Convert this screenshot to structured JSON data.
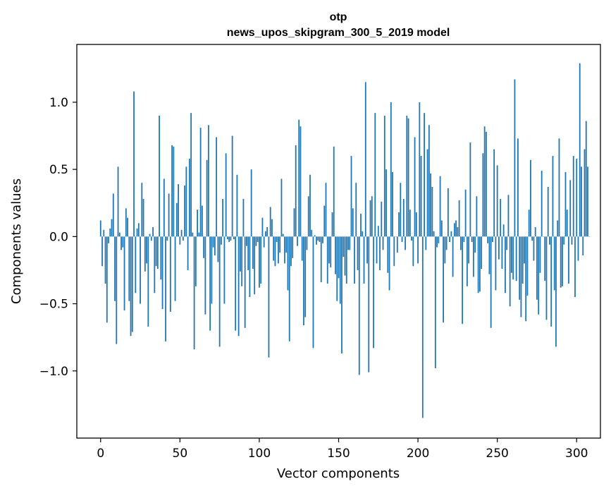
{
  "chart_data": {
    "type": "bar",
    "title_lines": [
      "otp",
      "news_upos_skipgram_300_5_2019 model"
    ],
    "xlabel": "Vector components",
    "ylabel": "Components values",
    "x_range": [
      -15,
      315
    ],
    "ylim": [
      -1.5,
      1.43
    ],
    "x_ticks": [
      0,
      50,
      100,
      150,
      200,
      250,
      300
    ],
    "x_tick_labels": [
      "0",
      "50",
      "100",
      "150",
      "200",
      "250",
      "300"
    ],
    "y_ticks": [
      -1.0,
      -0.5,
      0.0,
      0.5,
      1.0
    ],
    "y_tick_labels": [
      "−1.0",
      "−0.5",
      "0.0",
      "0.5",
      "1.0"
    ],
    "grid": false,
    "bar_color": "#1f77b4",
    "values": [
      0.12,
      -0.22,
      0.05,
      -0.35,
      -0.64,
      -0.05,
      0.06,
      0.13,
      0.32,
      -0.48,
      -0.8,
      0.52,
      0.03,
      -0.1,
      -0.08,
      -0.55,
      0.21,
      0.14,
      -0.48,
      -0.74,
      -0.71,
      1.08,
      -0.42,
      0.06,
      0.1,
      -0.5,
      0.4,
      0.28,
      -0.26,
      -0.2,
      -0.67,
      0.02,
      -0.03,
      0.07,
      -0.42,
      -0.22,
      -0.24,
      0.9,
      -0.32,
      -0.54,
      0.43,
      -0.78,
      -0.03,
      0.32,
      -0.56,
      0.68,
      0.67,
      -0.48,
      0.25,
      0.39,
      -0.06,
      0.05,
      -0.03,
      0.38,
      0.52,
      -0.25,
      0.58,
      0.92,
      0.03,
      -0.84,
      -0.37,
      0.2,
      0.03,
      0.81,
      0.23,
      -0.16,
      -0.58,
      0.57,
      0.83,
      -0.7,
      -0.5,
      -0.08,
      -0.14,
      0.74,
      -0.19,
      -0.82,
      -0.06,
      0.28,
      -0.5,
      0.62,
      -0.02,
      -0.04,
      -0.03,
      0.75,
      -0.02,
      -0.7,
      0.46,
      -0.74,
      -0.26,
      -0.37,
      0.28,
      -0.68,
      -0.07,
      -0.25,
      -0.45,
      0.5,
      -0.24,
      -0.43,
      -0.07,
      -0.04,
      -0.38,
      -0.35,
      0.14,
      -0.08,
      0.04,
      0.07,
      -0.9,
      0.22,
      0.13,
      -0.18,
      -0.22,
      -0.04,
      -0.2,
      -0.12,
      0.43,
      0.02,
      -0.2,
      -0.12,
      -0.4,
      -0.78,
      -0.22,
      -0.16,
      0.21,
      0.68,
      -0.07,
      0.87,
      0.82,
      -0.18,
      -0.66,
      -0.6,
      -0.1,
      0.3,
      0.46,
      0.05,
      -0.83,
      0.01,
      -0.06,
      -0.03,
      -0.04,
      -0.34,
      -0.05,
      0.23,
      0.4,
      -0.35,
      -0.2,
      -0.23,
      0.18,
      0.67,
      -0.28,
      -0.48,
      -0.31,
      -0.5,
      -0.87,
      -0.15,
      -0.29,
      -0.35,
      -0.1,
      -0.1,
      0.6,
      0.21,
      -0.35,
      0.4,
      -0.25,
      -1.03,
      0.17,
      0.04,
      -0.35,
      1.15,
      -0.2,
      -1.01,
      0.27,
      0.3,
      -0.83,
      0.92,
      -0.2,
      0.08,
      -0.25,
      0.26,
      -0.1,
      0.9,
      0.5,
      -0.27,
      -0.4,
      1.0,
      0.48,
      -0.22,
      0.0,
      -0.12,
      0.18,
      0.4,
      -0.04,
      0.28,
      -0.1,
      0.9,
      0.88,
      0.2,
      -0.03,
      -0.22,
      0.74,
      0.18,
      -0.2,
      1.0,
      0.6,
      -1.35,
      0.92,
      -0.1,
      0.65,
      0.83,
      0.47,
      0.37,
      0.04,
      -0.98,
      -0.08,
      -0.05,
      0.45,
      0.12,
      -0.64,
      -0.2,
      -0.1,
      0.36,
      -0.04,
      0.04,
      -0.3,
      0.1,
      0.12,
      0.07,
      0.27,
      -0.1,
      -0.65,
      -0.04,
      0.35,
      -0.37,
      -0.2,
      0.7,
      -0.04,
      -0.3,
      -0.12,
      0.3,
      -0.42,
      -0.41,
      -0.24,
      0.62,
      0.82,
      0.78,
      -0.05,
      -0.28,
      -0.68,
      -0.04,
      0.65,
      -0.4,
      0.53,
      -0.17,
      0.28,
      -0.24,
      0.09,
      -0.42,
      -0.1,
      0.31,
      -0.52,
      -0.27,
      -0.32,
      1.17,
      -0.33,
      0.73,
      -0.47,
      -0.6,
      -0.35,
      -0.2,
      -0.63,
      -0.44,
      0.2,
      0.57,
      -0.03,
      -0.18,
      0.07,
      -0.47,
      -0.58,
      -0.27,
      0.49,
      0.0,
      -0.33,
      -0.62,
      0.37,
      -0.06,
      -0.67,
      0.6,
      -0.4,
      -0.82,
      0.12,
      0.73,
      -0.38,
      -0.37,
      -0.06,
      0.48,
      0.2,
      -0.35,
      0.42,
      -0.06,
      0.6,
      -0.45,
      0.58,
      -0.18,
      1.29,
      0.52,
      -0.14,
      0.65,
      0.86,
      0.52,
      0.0
    ]
  }
}
